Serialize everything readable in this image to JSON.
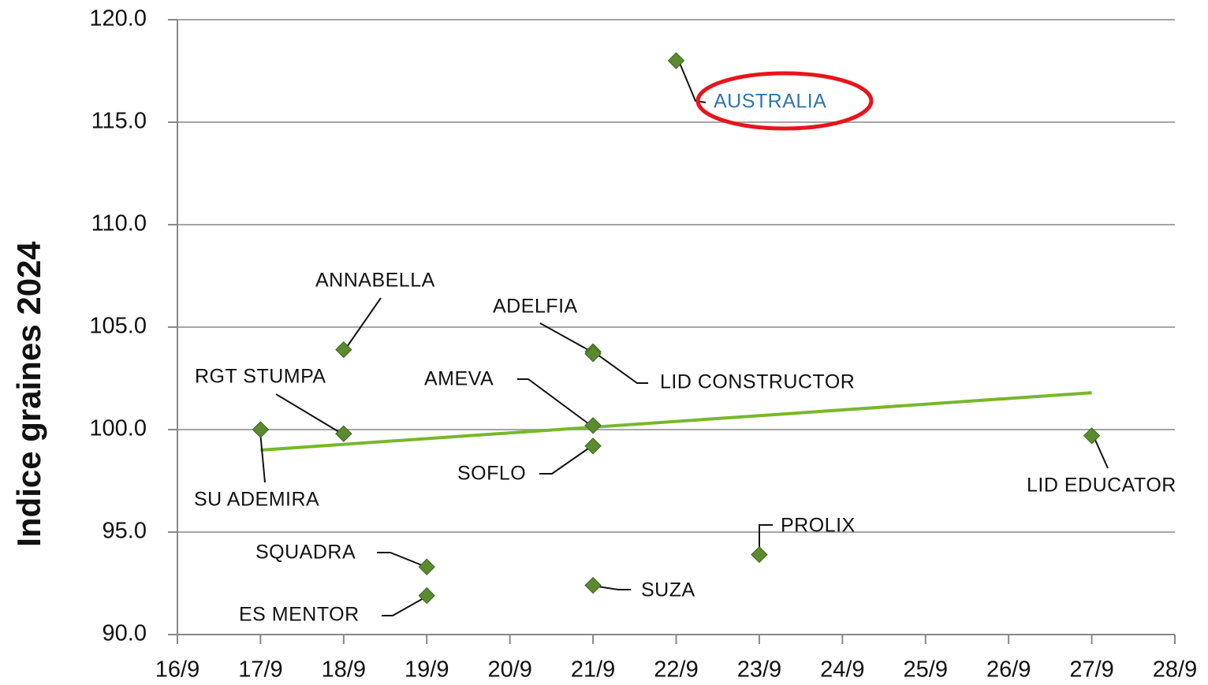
{
  "chart_data": {
    "type": "scatter",
    "ylabel": "Indice graines 2024",
    "xlim": [
      16,
      28
    ],
    "xticks": [
      {
        "value": 16,
        "label": "16/9"
      },
      {
        "value": 17,
        "label": "17/9"
      },
      {
        "value": 18,
        "label": "18/9"
      },
      {
        "value": 19,
        "label": "19/9"
      },
      {
        "value": 20,
        "label": "20/9"
      },
      {
        "value": 21,
        "label": "21/9"
      },
      {
        "value": 22,
        "label": "22/9"
      },
      {
        "value": 23,
        "label": "23/9"
      },
      {
        "value": 24,
        "label": "24/9"
      },
      {
        "value": 25,
        "label": "25/9"
      },
      {
        "value": 26,
        "label": "26/9"
      },
      {
        "value": 27,
        "label": "27/9"
      },
      {
        "value": 28,
        "label": "28/9"
      }
    ],
    "ylim": [
      90,
      120
    ],
    "yticks": [
      {
        "value": 90,
        "label": "90.0"
      },
      {
        "value": 95,
        "label": "95.0"
      },
      {
        "value": 100,
        "label": "100.0"
      },
      {
        "value": 105,
        "label": "105.0"
      },
      {
        "value": 110,
        "label": "110.0"
      },
      {
        "value": 115,
        "label": "115.0"
      },
      {
        "value": 120,
        "label": "120.0"
      }
    ],
    "grid": true,
    "color": "#5b8a2f",
    "highlight_color": "#2e75b6",
    "points": [
      {
        "label": "SU ADEMIRA",
        "x": 17,
        "y": 100.0
      },
      {
        "label": "RGT STUMPA",
        "x": 18,
        "y": 99.8
      },
      {
        "label": "ANNABELLA",
        "x": 18,
        "y": 103.9
      },
      {
        "label": "SQUADRA",
        "x": 19,
        "y": 93.3
      },
      {
        "label": "ES MENTOR",
        "x": 19,
        "y": 91.9
      },
      {
        "label": "ADELFIA",
        "x": 21,
        "y": 103.8
      },
      {
        "label": "LID CONSTRUCTOR",
        "x": 21,
        "y": 103.7
      },
      {
        "label": "AMEVA",
        "x": 21,
        "y": 100.2
      },
      {
        "label": "SOFLO",
        "x": 21,
        "y": 99.2
      },
      {
        "label": "SUZA",
        "x": 21,
        "y": 92.4
      },
      {
        "label": "AUSTRALIA",
        "x": 22,
        "y": 118.0,
        "highlight": true
      },
      {
        "label": "PROLIX",
        "x": 23,
        "y": 93.9
      },
      {
        "label": "LID EDUCATOR",
        "x": 27,
        "y": 99.7
      }
    ],
    "trendline": {
      "x": [
        17,
        27
      ],
      "values": [
        99.0,
        101.8
      ],
      "color": "#77b82a"
    }
  }
}
